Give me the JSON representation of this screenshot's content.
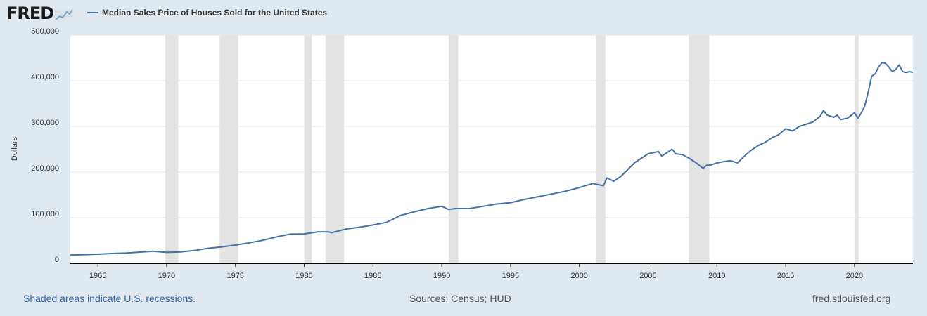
{
  "header": {
    "logo_text": "FRED",
    "logo_icon": "fred-graph-icon",
    "series_title": "Median Sales Price of Houses Sold for the United States"
  },
  "footer": {
    "recession_note": "Shaded areas indicate U.S. recessions.",
    "sources": "Sources: Census; HUD",
    "site": "fred.stlouisfed.org"
  },
  "colors": {
    "line": "#4572a7",
    "recession": "#e3e3e3",
    "background": "#e1e9f0",
    "plot_background": "#ffffff",
    "grid": "#e6e6e6"
  },
  "chart_data": {
    "type": "line",
    "title": "Median Sales Price of Houses Sold for the United States",
    "xlabel": "",
    "ylabel": "Dollars",
    "xlim": [
      1963.0,
      2024.25
    ],
    "ylim": [
      0,
      500000
    ],
    "xticks": [
      1965,
      1970,
      1975,
      1980,
      1985,
      1990,
      1995,
      2000,
      2005,
      2010,
      2015,
      2020
    ],
    "yticks": [
      0,
      100000,
      200000,
      300000,
      400000,
      500000
    ],
    "ytick_labels": [
      "0",
      "100,000",
      "200,000",
      "300,000",
      "400,000",
      "500,000"
    ],
    "grid": true,
    "legend": "top-left",
    "recessions": [
      [
        1969.9,
        1970.85
      ],
      [
        1973.85,
        1975.2
      ],
      [
        1980.0,
        1980.55
      ],
      [
        1981.55,
        1982.9
      ],
      [
        1990.5,
        1991.2
      ],
      [
        2001.2,
        2001.9
      ],
      [
        2007.95,
        2009.45
      ],
      [
        2020.05,
        2020.3
      ]
    ],
    "series": [
      {
        "name": "Median Sales Price of Houses Sold for the United States",
        "x": [
          1963.0,
          1964.0,
          1965.0,
          1966.0,
          1967.0,
          1968.0,
          1969.0,
          1970.0,
          1971.0,
          1972.0,
          1973.0,
          1974.0,
          1975.0,
          1976.0,
          1977.0,
          1978.0,
          1979.0,
          1980.0,
          1981.0,
          1981.75,
          1982.0,
          1983.0,
          1984.0,
          1985.0,
          1986.0,
          1987.0,
          1988.0,
          1989.0,
          1990.0,
          1990.5,
          1991.0,
          1992.0,
          1993.0,
          1994.0,
          1995.0,
          1996.0,
          1997.0,
          1998.0,
          1999.0,
          2000.0,
          2001.0,
          2001.75,
          2002.0,
          2002.5,
          2003.0,
          2004.0,
          2004.5,
          2005.0,
          2005.75,
          2006.0,
          2006.25,
          2006.75,
          2007.0,
          2007.5,
          2008.0,
          2008.5,
          2009.0,
          2009.25,
          2009.5,
          2010.0,
          2010.5,
          2011.0,
          2011.5,
          2012.0,
          2012.5,
          2013.0,
          2013.5,
          2014.0,
          2014.5,
          2015.0,
          2015.5,
          2016.0,
          2016.5,
          2017.0,
          2017.5,
          2017.75,
          2018.0,
          2018.5,
          2018.75,
          2019.0,
          2019.5,
          2020.0,
          2020.25,
          2020.5,
          2020.75,
          2021.0,
          2021.25,
          2021.5,
          2021.75,
          2022.0,
          2022.25,
          2022.5,
          2022.75,
          2023.0,
          2023.25,
          2023.5,
          2023.75,
          2024.0,
          2024.25
        ],
        "values": [
          18000,
          19000,
          20000,
          21500,
          22500,
          24500,
          26500,
          24000,
          25000,
          28000,
          33000,
          36000,
          40000,
          45000,
          50500,
          58000,
          64000,
          64500,
          69000,
          69000,
          67000,
          75000,
          79000,
          84000,
          90000,
          105000,
          113000,
          120000,
          125000,
          118000,
          120000,
          120000,
          125000,
          130000,
          133000,
          140000,
          146000,
          152000,
          158000,
          166000,
          175000,
          170000,
          187000,
          180000,
          190000,
          220000,
          230000,
          240000,
          245000,
          235000,
          240000,
          250000,
          240000,
          238000,
          230000,
          220000,
          208000,
          215000,
          215000,
          220000,
          223000,
          225000,
          220000,
          235000,
          248000,
          258000,
          265000,
          275000,
          282000,
          295000,
          290000,
          300000,
          305000,
          310000,
          322000,
          335000,
          325000,
          320000,
          325000,
          315000,
          318000,
          330000,
          318000,
          330000,
          345000,
          375000,
          410000,
          415000,
          430000,
          440000,
          438000,
          430000,
          420000,
          425000,
          435000,
          420000,
          418000,
          420000,
          418000
        ]
      }
    ]
  }
}
